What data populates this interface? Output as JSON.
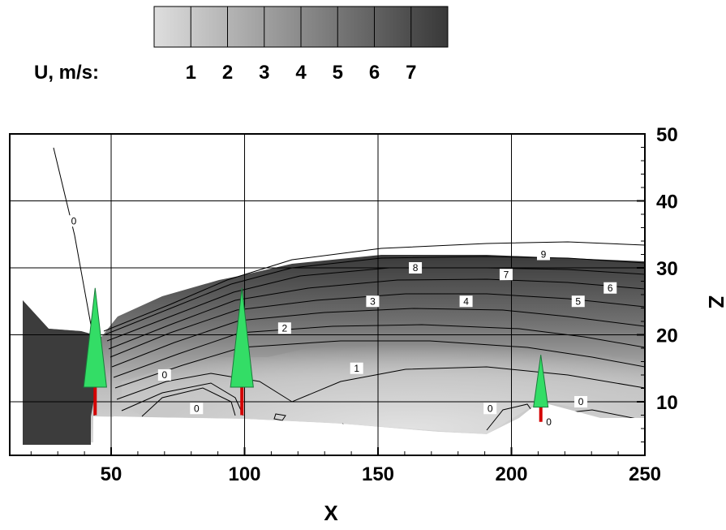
{
  "chart_data": {
    "type": "contour",
    "variable_label": "U, m/s:",
    "legend_levels": [
      "1",
      "2",
      "3",
      "4",
      "5",
      "6",
      "7"
    ],
    "xlabel": "X",
    "ylabel": "Z",
    "xlim": [
      12,
      250
    ],
    "ylim": [
      2,
      50
    ],
    "x_ticks": [
      "50",
      "100",
      "150",
      "200",
      "250"
    ],
    "y_ticks": [
      "10",
      "20",
      "30",
      "40",
      "50"
    ],
    "grid": true,
    "colors": {
      "low": "#dedede",
      "high": "#383838",
      "trunk": "#d40000",
      "foliage": "#33dd66"
    },
    "trees": [
      {
        "x": 44,
        "base_z": 8,
        "top_z": 27
      },
      {
        "x": 99,
        "base_z": 8,
        "top_z": 27
      },
      {
        "x": 211,
        "base_z": 7,
        "top_z": 17
      }
    ],
    "contour_labels": [
      {
        "text": "0",
        "x": 36,
        "z": 37
      },
      {
        "text": "0",
        "x": 70,
        "z": 14
      },
      {
        "text": "0",
        "x": 82,
        "z": 9
      },
      {
        "text": "0",
        "x": 192,
        "z": 9
      },
      {
        "text": "0",
        "x": 214,
        "z": 7
      },
      {
        "text": "0",
        "x": 226,
        "z": 10
      },
      {
        "text": "1",
        "x": 142,
        "z": 15
      },
      {
        "text": "2",
        "x": 115,
        "z": 21
      },
      {
        "text": "3",
        "x": 148,
        "z": 25
      },
      {
        "text": "4",
        "x": 183,
        "z": 25
      },
      {
        "text": "5",
        "x": 225,
        "z": 25
      },
      {
        "text": "6",
        "x": 237,
        "z": 27
      },
      {
        "text": "7",
        "x": 198,
        "z": 29
      },
      {
        "text": "8",
        "x": 164,
        "z": 30
      },
      {
        "text": "9",
        "x": 212,
        "z": 32
      }
    ]
  }
}
